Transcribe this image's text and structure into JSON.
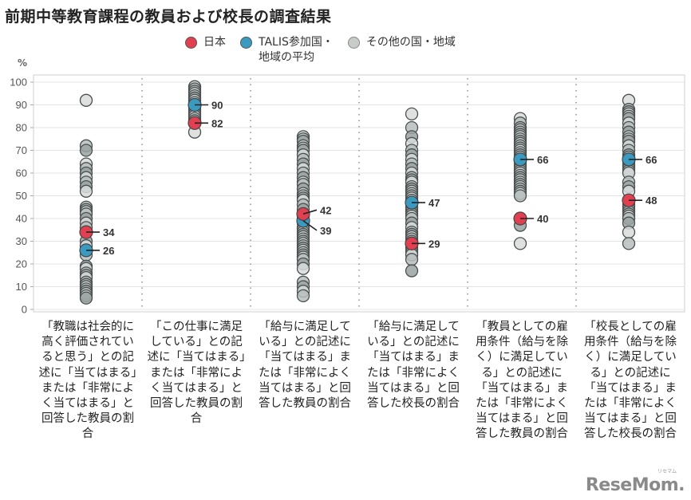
{
  "title": "前期中等教育課程の教員および校長の調査結果",
  "legend": [
    {
      "label": "日本",
      "color": "#e0404f"
    },
    {
      "label": "TALIS参加国・\n地域の平均",
      "color": "#3a9ac0"
    },
    {
      "label": "その他の国・地域",
      "color": "#c8ccc8"
    }
  ],
  "logo": "ReseMom.",
  "logo_small": "リセマム",
  "chart_data": {
    "type": "scatter",
    "title": "前期中等教育課程の教員および校長の調査結果",
    "ylabel": "%",
    "ylim": [
      0,
      100
    ],
    "yticks": [
      0,
      10,
      20,
      30,
      40,
      50,
      60,
      70,
      80,
      90,
      100
    ],
    "grid": true,
    "legend_position": "top",
    "categories": [
      "「教職は社会的に高く評価されていると思う」との記述に「当てはまる」または「非常によく当てはまる」と回答した教員の割合",
      "「この仕事に満足している」との記述に「当てはまる」または「非常によく当てはまる」と回答した教員の割合",
      "「給与に満足している」との記述に「当てはまる」または「非常によく当てはまる」と回答した教員の割合",
      "「給与に満足している」との記述に「当てはまる」または「非常によく当てはまる」と回答した校長の割合",
      "「教員としての雇用条件（給与を除く）に満足している」との記述に「当てはまる」または「非常によく当てはまる」と回答した教員の割合",
      "「校長としての雇用条件（給与を除く）に満足している」との記述に「当てはまる」または「非常によく当てはまる」と回答した校長の割合"
    ],
    "series": [
      {
        "name": "日本",
        "values": [
          34,
          82,
          42,
          29,
          40,
          48
        ]
      },
      {
        "name": "TALIS参加国・地域の平均",
        "values": [
          26,
          90,
          39,
          47,
          66,
          66
        ]
      },
      {
        "name": "その他の国・地域",
        "values": [
          [
            92,
            72,
            70,
            64,
            62,
            60,
            58,
            56,
            54,
            52,
            45,
            44,
            43,
            42,
            40,
            38,
            36,
            30,
            28,
            24,
            19,
            18,
            16,
            15,
            14,
            12,
            11,
            10,
            9,
            8,
            7,
            6,
            5
          ],
          [
            98,
            97,
            96,
            95,
            94,
            93,
            92,
            91,
            89,
            88,
            87,
            86,
            85,
            84,
            83,
            78
          ],
          [
            76,
            75,
            74,
            72,
            71,
            70,
            68,
            66,
            64,
            62,
            60,
            58,
            56,
            55,
            53,
            51,
            50,
            49,
            48,
            46,
            44,
            41,
            38,
            36,
            35,
            34,
            33,
            32,
            31,
            30,
            29,
            28,
            27,
            26,
            25,
            24,
            23,
            22,
            20,
            18,
            12,
            10,
            8,
            6
          ],
          [
            86,
            80,
            76,
            73,
            70,
            68,
            66,
            64,
            62,
            60,
            58,
            57,
            56,
            54,
            53,
            52,
            51,
            50,
            49,
            48,
            45,
            44,
            43,
            42,
            41,
            40,
            38,
            36,
            34,
            33,
            32,
            31,
            30,
            27,
            26,
            25,
            24,
            22,
            17
          ],
          [
            84,
            82,
            80,
            79,
            78,
            77,
            76,
            75,
            74,
            73,
            72,
            71,
            70,
            69,
            68,
            67,
            65,
            64,
            63,
            62,
            61,
            60,
            59,
            58,
            57,
            56,
            55,
            54,
            53,
            52,
            51,
            50,
            37,
            29
          ],
          [
            92,
            88,
            87,
            86,
            85,
            84,
            82,
            80,
            78,
            76,
            75,
            74,
            72,
            70,
            68,
            67,
            65,
            64,
            63,
            62,
            61,
            60,
            56,
            54,
            52,
            46,
            45,
            44,
            43,
            42,
            41,
            40,
            38,
            34,
            29
          ]
        ]
      }
    ],
    "annotations": [
      {
        "category": 0,
        "labels": [
          "34",
          "26"
        ]
      },
      {
        "category": 1,
        "labels": [
          "90",
          "82"
        ]
      },
      {
        "category": 2,
        "labels": [
          "42",
          "39"
        ]
      },
      {
        "category": 3,
        "labels": [
          "47",
          "29"
        ]
      },
      {
        "category": 4,
        "labels": [
          "66",
          "40"
        ]
      },
      {
        "category": 5,
        "labels": [
          "66",
          "48"
        ]
      }
    ]
  },
  "xlabels": [
    "「教職は社会的に高く評価されていると思う」との記述に「当てはまる」または「非常によく当てはまる」と回答した教員の割合",
    "「この仕事に満足している」との記述に「当てはまる」または「非常によく当てはまる」と回答した教員の割合",
    "「給与に満足している」との記述に「当てはまる」または「非常によく当てはまる」と回答した教員の割合",
    "「給与に満足している」との記述に「当てはまる」または「非常によく当てはまる」と回答した校長の割合",
    "「教員としての雇用条件（給与を除く）に満足している」との記述に「当てはまる」または「非常によく当てはまる」と回答した教員の割合",
    "「校長としての雇用条件（給与を除く）に満足している」との記述に「当てはまる」または「非常によく当てはまる」と回答した校長の割合"
  ]
}
